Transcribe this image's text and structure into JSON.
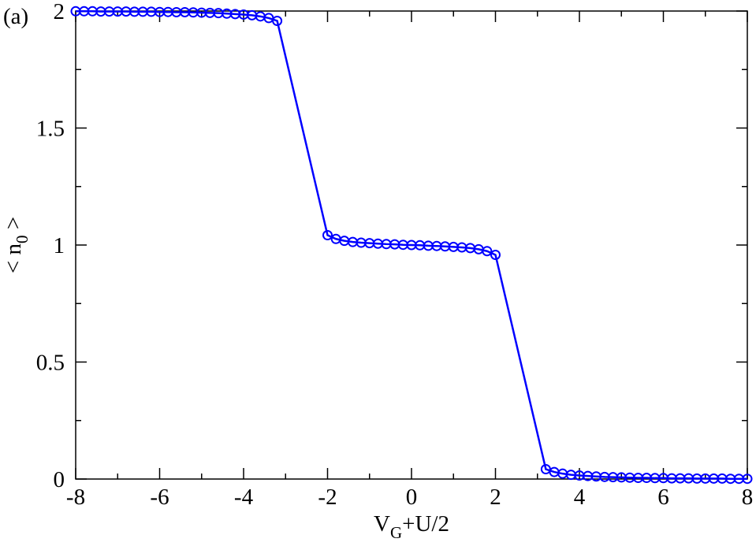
{
  "chart_data": {
    "type": "line",
    "annotation": "(a)",
    "xlabel": {
      "main": "V",
      "sub": "G",
      "rest": "+U/2"
    },
    "ylabel": {
      "main": "< n",
      "sub": "0",
      "rest": " >"
    },
    "x": [
      -8,
      -7.8,
      -7.6,
      -7.4,
      -7.2,
      -7,
      -6.8,
      -6.6,
      -6.4,
      -6.2,
      -6,
      -5.8,
      -5.6,
      -5.4,
      -5.2,
      -5,
      -4.8,
      -4.6,
      -4.4,
      -4.2,
      -4,
      -3.8,
      -3.6,
      -3.4,
      -3.2,
      -2,
      -1.8,
      -1.6,
      -1.4,
      -1.2,
      -1,
      -0.8,
      -0.6,
      -0.4,
      -0.2,
      0,
      0.2,
      0.4,
      0.6,
      0.8,
      1,
      1.2,
      1.4,
      1.6,
      1.8,
      2,
      3.2,
      3.4,
      3.6,
      3.8,
      4,
      4.2,
      4.4,
      4.6,
      4.8,
      5,
      5.2,
      5.4,
      5.6,
      5.8,
      6,
      6.2,
      6.4,
      6.6,
      6.8,
      7,
      7.2,
      7.4,
      7.6,
      7.8,
      8
    ],
    "series": [
      {
        "color": "#0000ff",
        "values": [
          1.999,
          1.999,
          1.999,
          1.998,
          1.998,
          1.998,
          1.998,
          1.997,
          1.997,
          1.997,
          1.996,
          1.996,
          1.995,
          1.995,
          1.994,
          1.993,
          1.992,
          1.991,
          1.989,
          1.987,
          1.985,
          1.982,
          1.977,
          1.97,
          1.958,
          1.042,
          1.026,
          1.018,
          1.013,
          1.01,
          1.008,
          1.006,
          1.004,
          1.003,
          1.001,
          1.0,
          0.999,
          0.997,
          0.996,
          0.994,
          0.992,
          0.99,
          0.987,
          0.982,
          0.974,
          0.958,
          0.042,
          0.03,
          0.023,
          0.018,
          0.015,
          0.013,
          0.011,
          0.009,
          0.008,
          0.007,
          0.006,
          0.005,
          0.005,
          0.004,
          0.004,
          0.003,
          0.003,
          0.003,
          0.002,
          0.002,
          0.002,
          0.002,
          0.001,
          0.001,
          0.001
        ]
      }
    ],
    "xlim": [
      -8,
      8
    ],
    "xticks": [
      -8,
      -6,
      -4,
      -2,
      0,
      2,
      4,
      6,
      8
    ],
    "xminorticks": [
      -7,
      -5,
      -3,
      -1,
      1,
      3,
      5,
      7
    ],
    "ylim": [
      0,
      2
    ],
    "yticks": [
      0,
      0.5,
      1,
      1.5,
      2
    ],
    "yminorticks": [
      0.25,
      0.75,
      1.25,
      1.75
    ]
  }
}
